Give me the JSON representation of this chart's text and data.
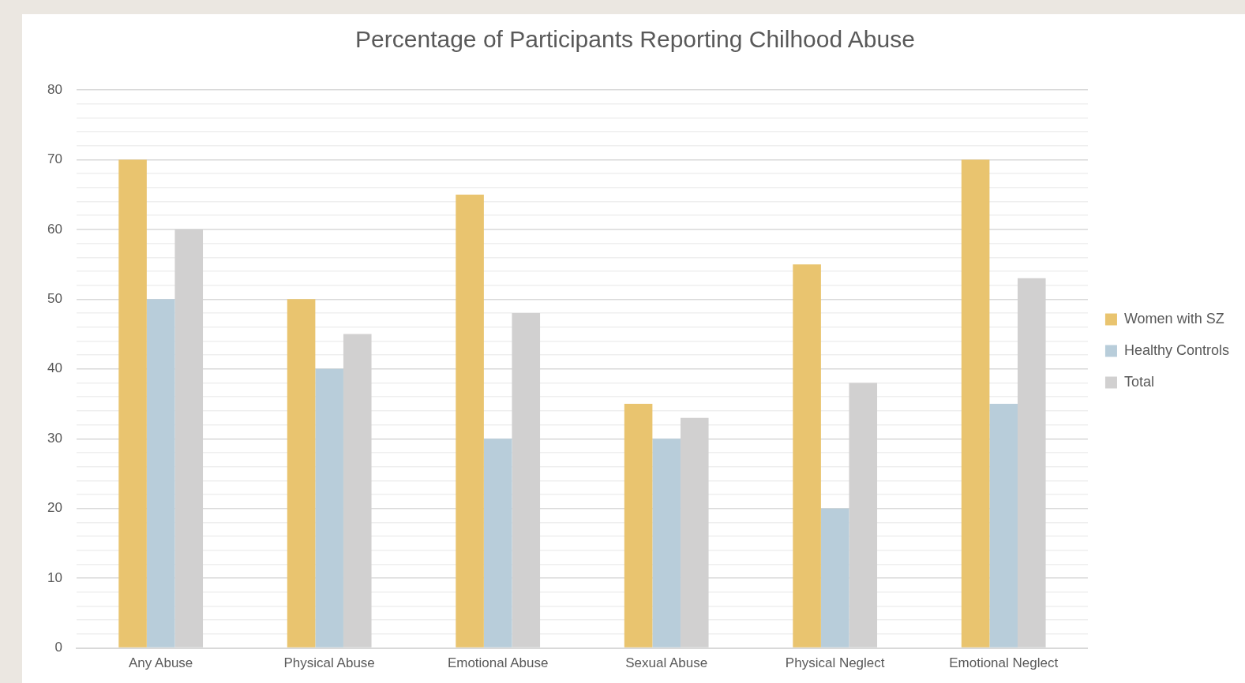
{
  "chart_data": {
    "type": "bar",
    "title": "Percentage of Participants Reporting Chilhood Abuse",
    "categories": [
      "Any Abuse",
      "Physical Abuse",
      "Emotional Abuse",
      "Sexual Abuse",
      "Physical Neglect",
      "Emotional Neglect"
    ],
    "series": [
      {
        "name": "Women with SZ",
        "color": "#e9c46f",
        "values": [
          70,
          50,
          65,
          35,
          55,
          70
        ]
      },
      {
        "name": "Healthy Controls",
        "color": "#b8cdda",
        "values": [
          50,
          40,
          30,
          30,
          20,
          35
        ]
      },
      {
        "name": "Total",
        "color": "#d1d0d0",
        "values": [
          60,
          45,
          48,
          33,
          38,
          53
        ]
      }
    ],
    "ylim": [
      0,
      80
    ],
    "yticks": [
      0,
      {
        "value": 2,
        "label": null
      },
      {
        "value": 4,
        "label": null
      },
      {
        "value": 6,
        "label": null
      },
      {
        "value": 8,
        "label": null
      },
      10,
      {
        "value": 12,
        "label": null
      },
      {
        "value": 14,
        "label": null
      },
      {
        "value": 16,
        "label": null
      },
      {
        "value": 18,
        "label": null
      },
      20,
      {
        "value": 22,
        "label": null
      },
      {
        "value": 24,
        "label": null
      },
      {
        "value": 26,
        "label": null
      },
      {
        "value": 28,
        "label": null
      },
      30,
      {
        "value": 32,
        "label": null
      },
      {
        "value": 34,
        "label": null
      },
      {
        "value": 36,
        "label": null
      },
      {
        "value": 38,
        "label": null
      },
      40,
      {
        "value": 42,
        "label": null
      },
      {
        "value": 44,
        "label": null
      },
      {
        "value": 46,
        "label": null
      },
      {
        "value": 48,
        "label": null
      },
      50,
      {
        "value": 52,
        "label": null
      },
      {
        "value": 54,
        "label": null
      },
      {
        "value": 56,
        "label": null
      },
      {
        "value": 58,
        "label": null
      },
      60,
      {
        "value": 62,
        "label": null
      },
      {
        "value": 64,
        "label": null
      },
      {
        "value": 66,
        "label": null
      },
      {
        "value": 68,
        "label": null
      },
      70,
      {
        "value": 72,
        "label": null
      },
      {
        "value": 74,
        "label": null
      },
      {
        "value": 76,
        "label": null
      },
      {
        "value": 78,
        "label": null
      },
      80
    ],
    "grid": "y",
    "legend": "right"
  }
}
